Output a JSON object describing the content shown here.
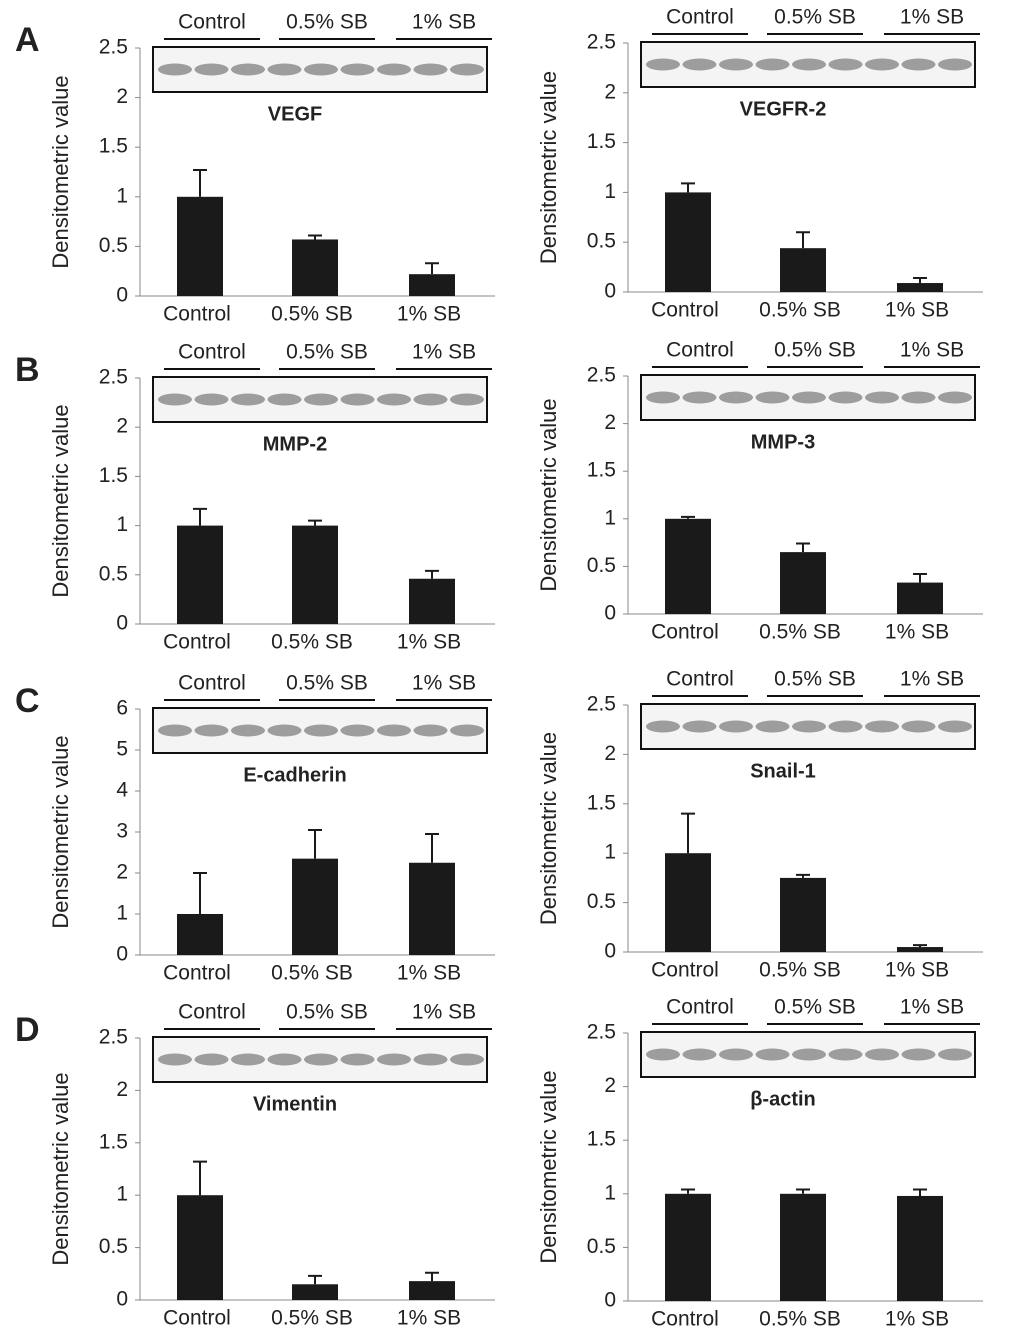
{
  "chart_data": [
    {
      "type": "bar",
      "panel": "A",
      "title": "VEGF",
      "ylabel": "Densitometric value",
      "blot_groups": [
        "Control",
        "0.5% SB",
        "1% SB"
      ],
      "categories": [
        "Control",
        "0.5% SB",
        "1% SB"
      ],
      "values": [
        1.0,
        0.57,
        0.22
      ],
      "errors": [
        0.27,
        0.04,
        0.11
      ],
      "color": "#1a1a1a",
      "ylim": [
        0,
        2.5
      ],
      "yticks": [
        0,
        0.5,
        1,
        1.5,
        2,
        2.5
      ]
    },
    {
      "type": "bar",
      "title": "VEGFR-2",
      "ylabel": "Densitometric value",
      "blot_groups": [
        "Control",
        "0.5% SB",
        "1% SB"
      ],
      "categories": [
        "Control",
        "0.5% SB",
        "1% SB"
      ],
      "values": [
        1.0,
        0.44,
        0.09
      ],
      "errors": [
        0.09,
        0.16,
        0.05
      ],
      "color": "#1a1a1a",
      "ylim": [
        0,
        2.5
      ],
      "yticks": [
        0,
        0.5,
        1,
        1.5,
        2,
        2.5
      ]
    },
    {
      "type": "bar",
      "panel": "B",
      "title": "MMP-2",
      "ylabel": "Densitometric value",
      "blot_groups": [
        "Control",
        "0.5% SB",
        "1% SB"
      ],
      "categories": [
        "Control",
        "0.5% SB",
        "1% SB"
      ],
      "values": [
        1.0,
        1.0,
        0.46
      ],
      "errors": [
        0.17,
        0.05,
        0.08
      ],
      "color": "#1a1a1a",
      "ylim": [
        0,
        2.5
      ],
      "yticks": [
        0,
        0.5,
        1,
        1.5,
        2,
        2.5
      ]
    },
    {
      "type": "bar",
      "title": "MMP-3",
      "ylabel": "Densitometric value",
      "blot_groups": [
        "Control",
        "0.5% SB",
        "1% SB"
      ],
      "categories": [
        "Control",
        "0.5% SB",
        "1% SB"
      ],
      "values": [
        1.0,
        0.65,
        0.33
      ],
      "errors": [
        0.02,
        0.09,
        0.09
      ],
      "color": "#1a1a1a",
      "ylim": [
        0,
        2.5
      ],
      "yticks": [
        0,
        0.5,
        1,
        1.5,
        2,
        2.5
      ]
    },
    {
      "type": "bar",
      "panel": "C",
      "title": "E-cadherin",
      "ylabel": "Densitometric value",
      "blot_groups": [
        "Control",
        "0.5% SB",
        "1% SB"
      ],
      "categories": [
        "Control",
        "0.5% SB",
        "1% SB"
      ],
      "values": [
        1.0,
        2.35,
        2.25
      ],
      "errors": [
        1.0,
        0.7,
        0.7
      ],
      "color": "#1a1a1a",
      "ylim": [
        0,
        6
      ],
      "yticks": [
        0,
        1,
        2,
        3,
        4,
        5,
        6
      ]
    },
    {
      "type": "bar",
      "title": "Snail-1",
      "ylabel": "Densitometric value",
      "blot_groups": [
        "Control",
        "0.5% SB",
        "1% SB"
      ],
      "categories": [
        "Control",
        "0.5% SB",
        "1% SB"
      ],
      "values": [
        1.0,
        0.75,
        0.05
      ],
      "errors": [
        0.4,
        0.03,
        0.02
      ],
      "color": "#1a1a1a",
      "ylim": [
        0,
        2.5
      ],
      "yticks": [
        0,
        0.5,
        1,
        1.5,
        2,
        2.5
      ]
    },
    {
      "type": "bar",
      "panel": "D",
      "title": "Vimentin",
      "ylabel": "Densitometric value",
      "blot_groups": [
        "Control",
        "0.5% SB",
        "1% SB"
      ],
      "categories": [
        "Control",
        "0.5% SB",
        "1% SB"
      ],
      "values": [
        1.0,
        0.15,
        0.18
      ],
      "errors": [
        0.32,
        0.08,
        0.08
      ],
      "color": "#1a1a1a",
      "ylim": [
        0,
        2.5
      ],
      "yticks": [
        0,
        0.5,
        1,
        1.5,
        2,
        2.5
      ]
    },
    {
      "type": "bar",
      "title": "β-actin",
      "ylabel": "Densitometric value",
      "blot_groups": [
        "Control",
        "0.5% SB",
        "1% SB"
      ],
      "categories": [
        "Control",
        "0.5% SB",
        "1% SB"
      ],
      "values": [
        1.0,
        1.0,
        0.98
      ],
      "errors": [
        0.04,
        0.04,
        0.06
      ],
      "color": "#1a1a1a",
      "ylim": [
        0,
        2.5
      ],
      "yticks": [
        0,
        0.5,
        1,
        1.5,
        2,
        2.5
      ]
    }
  ]
}
